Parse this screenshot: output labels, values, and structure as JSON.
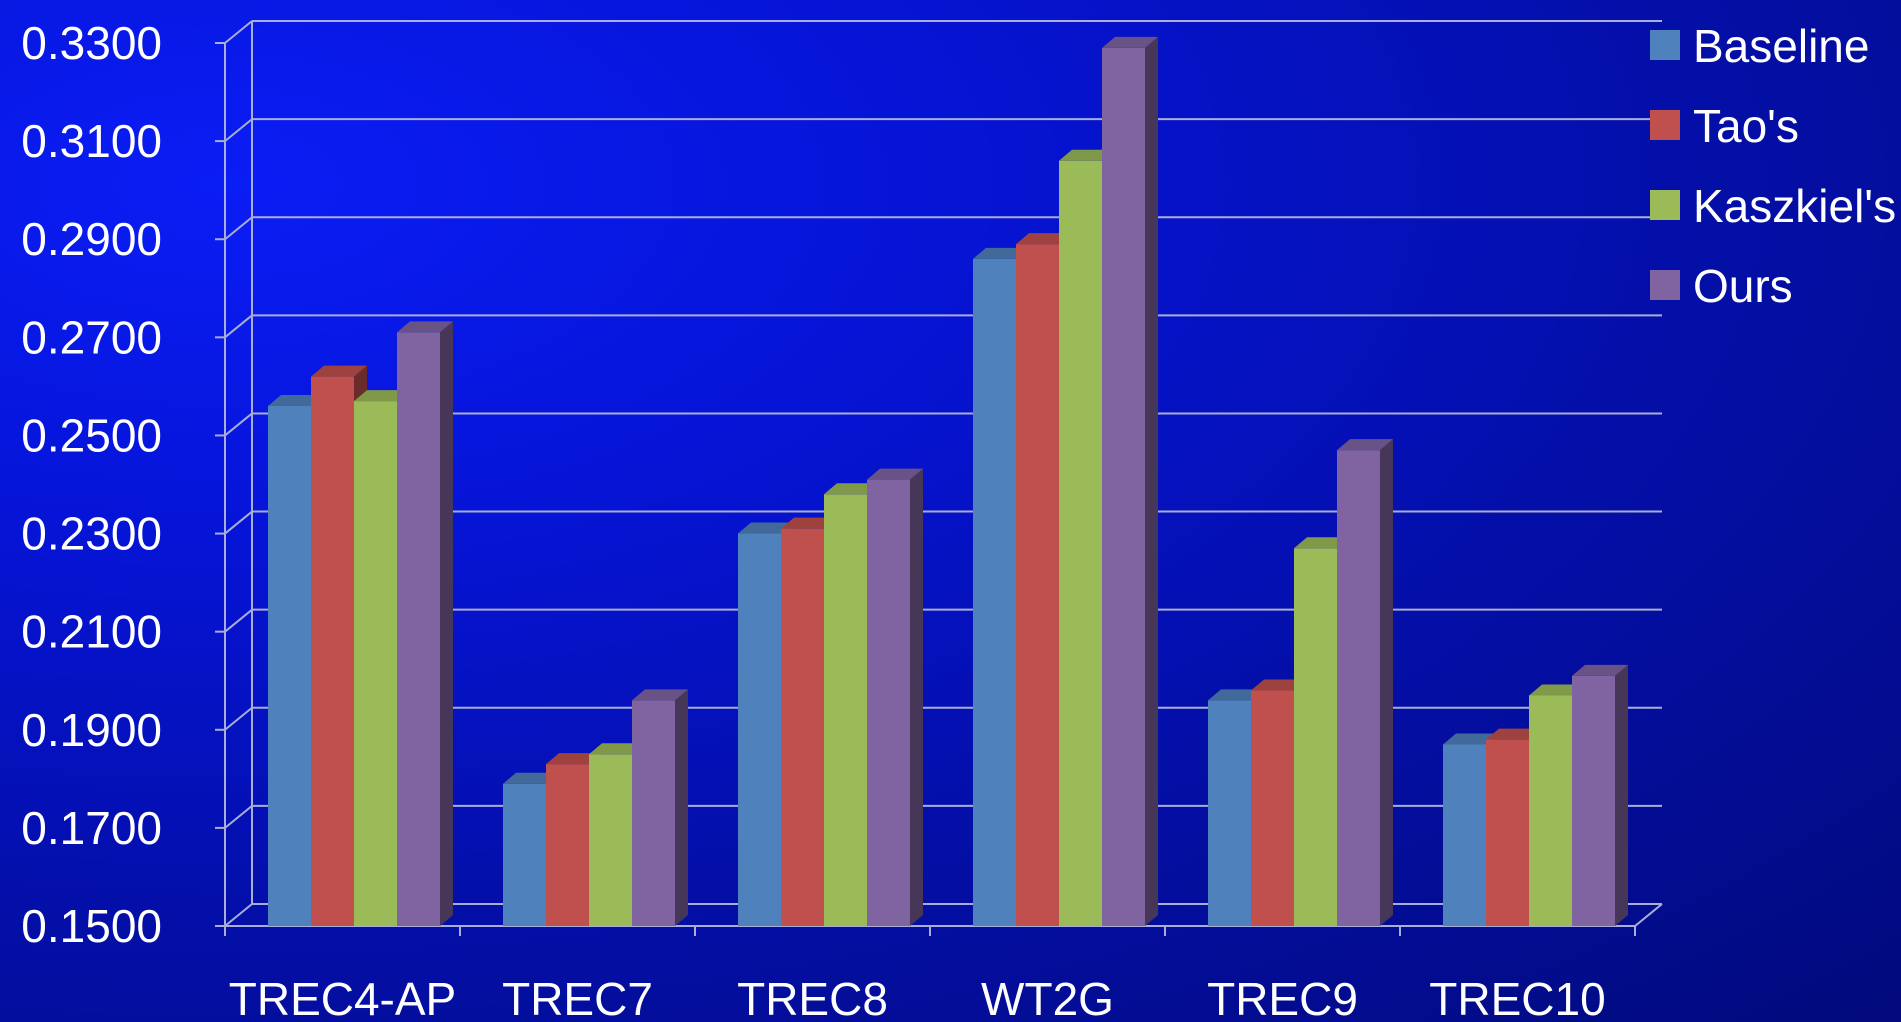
{
  "chart_data": {
    "type": "bar",
    "categories": [
      "TREC4-AP",
      "TREC7",
      "TREC8",
      "WT2G",
      "TREC9",
      "TREC10"
    ],
    "series": [
      {
        "name": "Baseline",
        "values": [
          0.256,
          0.179,
          0.23,
          0.286,
          0.196,
          0.187
        ],
        "color": "#4f81bd"
      },
      {
        "name": "Tao's",
        "values": [
          0.262,
          0.183,
          0.231,
          0.289,
          0.198,
          0.188
        ],
        "color": "#c0504d"
      },
      {
        "name": "Kaszkiel's",
        "values": [
          0.257,
          0.185,
          0.238,
          0.306,
          0.227,
          0.197
        ],
        "color": "#9bbb59"
      },
      {
        "name": "Ours",
        "values": [
          0.271,
          0.196,
          0.241,
          0.329,
          0.247,
          0.201
        ],
        "color": "#8064a2"
      }
    ],
    "ylim": [
      0.15,
      0.33
    ],
    "yticks": [
      "0.1500",
      "0.1700",
      "0.1900",
      "0.2100",
      "0.2300",
      "0.2500",
      "0.2700",
      "0.2900",
      "0.3100",
      "0.3300"
    ],
    "grid": true,
    "legend": "top-right",
    "style": "3d-clustered-column"
  }
}
